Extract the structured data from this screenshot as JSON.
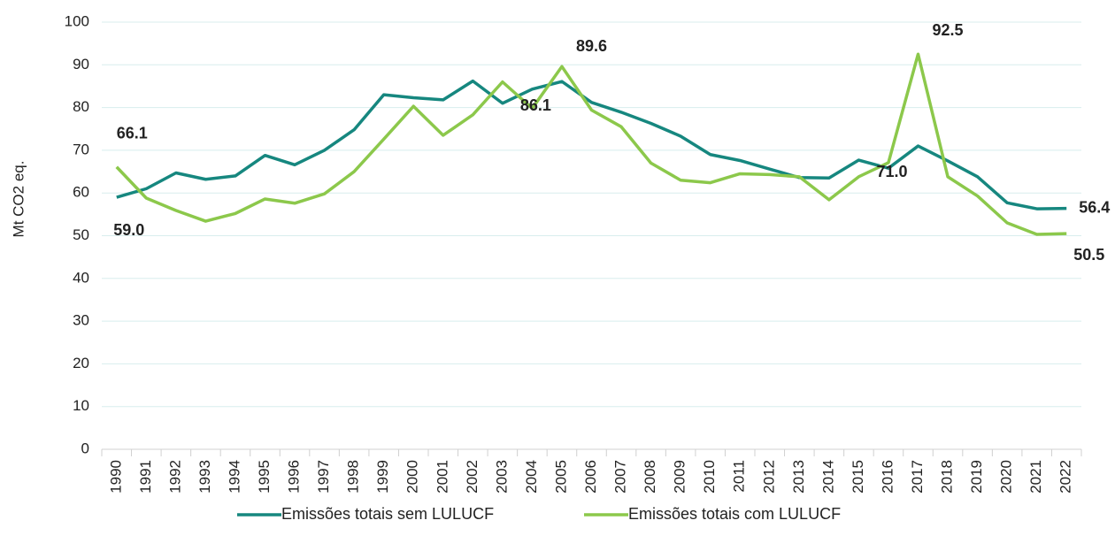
{
  "chart_data": {
    "type": "line",
    "y_label": "Mt CO2 eq.",
    "categories": [
      "1990",
      "1991",
      "1992",
      "1993",
      "1994",
      "1995",
      "1996",
      "1997",
      "1998",
      "1999",
      "2000",
      "2001",
      "2002",
      "2003",
      "2004",
      "2005",
      "2006",
      "2007",
      "2008",
      "2009",
      "2010",
      "2011",
      "2012",
      "2013",
      "2014",
      "2015",
      "2016",
      "2017",
      "2018",
      "2019",
      "2020",
      "2021",
      "2022"
    ],
    "series": [
      {
        "name": "Emissões totais sem LULUCF",
        "color": "#16877f",
        "label_color": "#4a7ebb",
        "values": [
          59.0,
          61,
          64.7,
          63.2,
          64,
          68.8,
          66.6,
          70,
          74.8,
          83,
          82.3,
          81.8,
          86.2,
          81,
          84.3,
          86.1,
          81.2,
          78.9,
          76.3,
          73.3,
          69,
          67.6,
          65.6,
          63.6,
          63.5,
          67.7,
          65.8,
          71.0,
          67.5,
          63.8,
          57.7,
          56.3,
          56.4
        ],
        "value_labels": [
          "59.0",
          null,
          null,
          null,
          null,
          null,
          null,
          null,
          null,
          null,
          null,
          null,
          null,
          null,
          null,
          "86.1",
          null,
          null,
          null,
          null,
          null,
          null,
          null,
          null,
          null,
          null,
          null,
          "71.0",
          null,
          null,
          null,
          null,
          "56.4"
        ]
      },
      {
        "name": "Emissões totais com LULUCF",
        "color": "#8cc84b",
        "label_color": "#8cc84b",
        "values": [
          66.1,
          58.8,
          55.9,
          53.4,
          55.2,
          58.6,
          57.6,
          59.8,
          65,
          72.6,
          80.3,
          73.5,
          78.3,
          86,
          79.8,
          89.6,
          79.4,
          75.5,
          67,
          63,
          62.4,
          64.5,
          64.3,
          63.8,
          58.4,
          63.8,
          67.1,
          92.5,
          63.8,
          59.3,
          53,
          50.3,
          50.5
        ],
        "value_labels": [
          "66.1",
          null,
          null,
          null,
          null,
          null,
          null,
          null,
          null,
          null,
          null,
          null,
          null,
          null,
          null,
          "89.6",
          null,
          null,
          null,
          null,
          null,
          null,
          null,
          null,
          null,
          null,
          null,
          "92.5",
          null,
          null,
          null,
          null,
          "50.5"
        ]
      }
    ],
    "ylim": [
      0,
      100
    ],
    "yticks": [
      0,
      10,
      20,
      30,
      40,
      50,
      60,
      70,
      80,
      90,
      100
    ],
    "grid": true,
    "legend": "bottom"
  }
}
